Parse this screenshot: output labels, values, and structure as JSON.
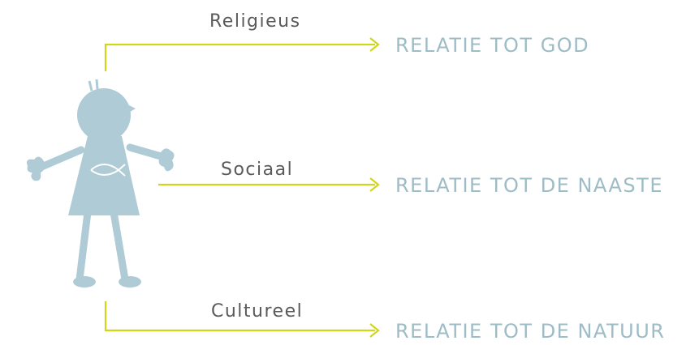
{
  "relations": [
    {
      "label": "Religieus",
      "target": "RELATIE TOT GOD"
    },
    {
      "label": "Sociaal",
      "target": "RELATIE TOT DE NAASTE"
    },
    {
      "label": "Cultureel",
      "target": "RELATIE TOT DE NATUUR"
    }
  ]
}
